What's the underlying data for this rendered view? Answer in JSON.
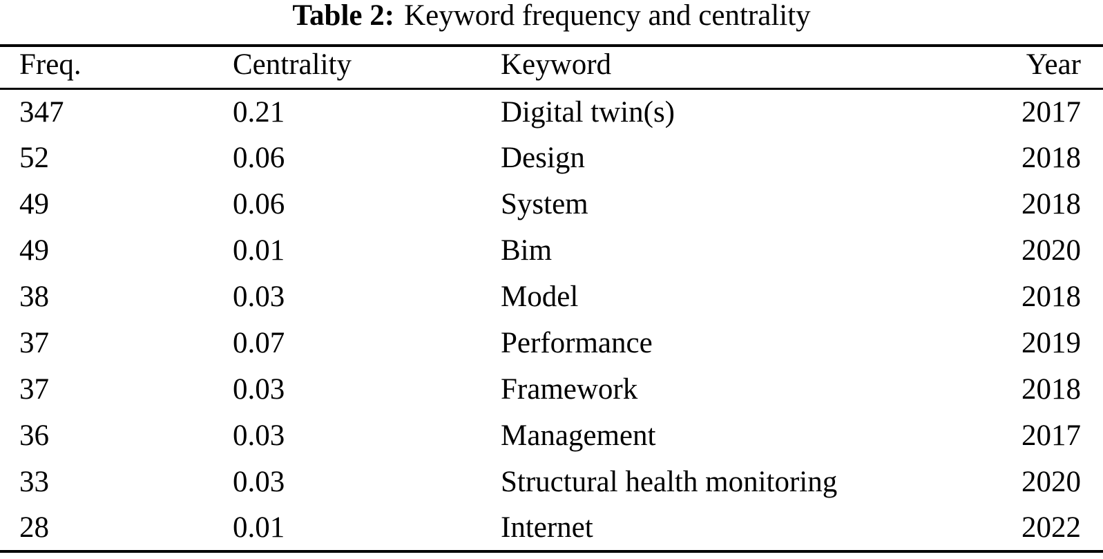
{
  "caption": {
    "label": "Table 2:",
    "text": "Keyword frequency and centrality"
  },
  "table": {
    "headers": [
      "Freq.",
      "Centrality",
      "Keyword",
      "Year"
    ],
    "rows": [
      {
        "freq": "347",
        "centrality": "0.21",
        "keyword": "Digital twin(s)",
        "year": "2017"
      },
      {
        "freq": "52",
        "centrality": "0.06",
        "keyword": "Design",
        "year": "2018"
      },
      {
        "freq": "49",
        "centrality": "0.06",
        "keyword": "System",
        "year": "2018"
      },
      {
        "freq": "49",
        "centrality": "0.01",
        "keyword": "Bim",
        "year": "2020"
      },
      {
        "freq": "38",
        "centrality": "0.03",
        "keyword": "Model",
        "year": "2018"
      },
      {
        "freq": "37",
        "centrality": "0.07",
        "keyword": "Performance",
        "year": "2019"
      },
      {
        "freq": "37",
        "centrality": "0.03",
        "keyword": "Framework",
        "year": "2018"
      },
      {
        "freq": "36",
        "centrality": "0.03",
        "keyword": "Management",
        "year": "2017"
      },
      {
        "freq": "33",
        "centrality": "0.03",
        "keyword": "Structural health monitoring",
        "year": "2020"
      },
      {
        "freq": "28",
        "centrality": "0.01",
        "keyword": "Internet",
        "year": "2022"
      }
    ]
  },
  "colors": {
    "text": "#000000",
    "background": "#ffffff",
    "rule": "#000000"
  },
  "chart_data": {
    "type": "table",
    "title": "Table 2: Keyword frequency and centrality",
    "columns": [
      "Freq.",
      "Centrality",
      "Keyword",
      "Year"
    ],
    "rows": [
      [
        347,
        0.21,
        "Digital twin(s)",
        2017
      ],
      [
        52,
        0.06,
        "Design",
        2018
      ],
      [
        49,
        0.06,
        "System",
        2018
      ],
      [
        49,
        0.01,
        "Bim",
        2020
      ],
      [
        38,
        0.03,
        "Model",
        2018
      ],
      [
        37,
        0.07,
        "Performance",
        2019
      ],
      [
        37,
        0.03,
        "Framework",
        2018
      ],
      [
        36,
        0.03,
        "Management",
        2017
      ],
      [
        33,
        0.03,
        "Structural health monitoring",
        2020
      ],
      [
        28,
        0.01,
        "Internet",
        2022
      ]
    ]
  }
}
